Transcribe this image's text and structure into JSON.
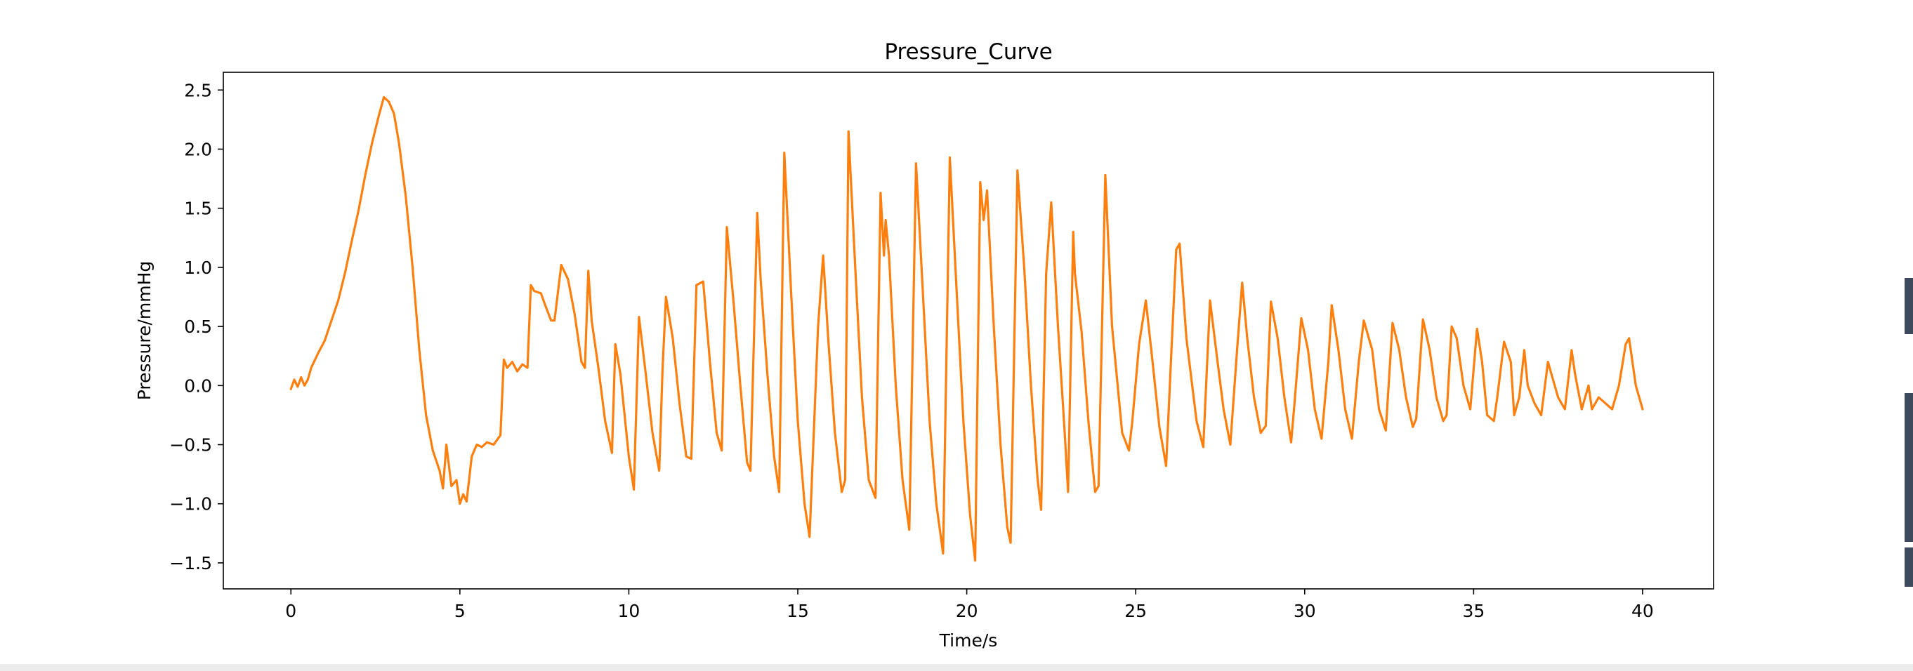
{
  "chart_data": {
    "type": "line",
    "title": "Pressure_Curve",
    "xlabel": "Time/s",
    "ylabel": "Pressure/mmHg",
    "xlim": [
      -2.0,
      42.1
    ],
    "ylim": [
      -1.72,
      2.65
    ],
    "xticks": [
      0,
      5,
      10,
      15,
      20,
      25,
      30,
      35,
      40
    ],
    "yticks": [
      -1.5,
      -1.0,
      -0.5,
      0.0,
      0.5,
      1.0,
      1.5,
      2.0,
      2.5
    ],
    "ytick_labels": [
      "−1.5",
      "−1.0",
      "−0.5",
      "0.0",
      "0.5",
      "1.0",
      "1.5",
      "2.0",
      "2.5"
    ],
    "grid": false,
    "series_color": "#ff7f0e",
    "series": [
      {
        "values_xy": [
          [
            0.0,
            -0.03
          ],
          [
            0.1,
            0.05
          ],
          [
            0.2,
            -0.01
          ],
          [
            0.3,
            0.07
          ],
          [
            0.4,
            0.0
          ],
          [
            0.5,
            0.05
          ],
          [
            0.6,
            0.15
          ],
          [
            0.8,
            0.27
          ],
          [
            1.0,
            0.38
          ],
          [
            1.2,
            0.55
          ],
          [
            1.4,
            0.72
          ],
          [
            1.6,
            0.95
          ],
          [
            1.8,
            1.22
          ],
          [
            2.0,
            1.48
          ],
          [
            2.2,
            1.78
          ],
          [
            2.4,
            2.05
          ],
          [
            2.6,
            2.28
          ],
          [
            2.75,
            2.44
          ],
          [
            2.9,
            2.4
          ],
          [
            3.05,
            2.3
          ],
          [
            3.2,
            2.05
          ],
          [
            3.4,
            1.6
          ],
          [
            3.6,
            1.0
          ],
          [
            3.8,
            0.3
          ],
          [
            4.0,
            -0.25
          ],
          [
            4.2,
            -0.55
          ],
          [
            4.4,
            -0.72
          ],
          [
            4.5,
            -0.87
          ],
          [
            4.6,
            -0.5
          ],
          [
            4.75,
            -0.85
          ],
          [
            4.9,
            -0.8
          ],
          [
            5.0,
            -1.0
          ],
          [
            5.1,
            -0.92
          ],
          [
            5.2,
            -0.98
          ],
          [
            5.35,
            -0.6
          ],
          [
            5.5,
            -0.5
          ],
          [
            5.65,
            -0.52
          ],
          [
            5.8,
            -0.48
          ],
          [
            6.0,
            -0.5
          ],
          [
            6.2,
            -0.42
          ],
          [
            6.3,
            0.22
          ],
          [
            6.4,
            0.15
          ],
          [
            6.55,
            0.2
          ],
          [
            6.7,
            0.12
          ],
          [
            6.85,
            0.18
          ],
          [
            7.0,
            0.15
          ],
          [
            7.1,
            0.85
          ],
          [
            7.2,
            0.8
          ],
          [
            7.4,
            0.78
          ],
          [
            7.5,
            0.7
          ],
          [
            7.7,
            0.55
          ],
          [
            7.8,
            0.55
          ],
          [
            8.0,
            1.02
          ],
          [
            8.2,
            0.9
          ],
          [
            8.4,
            0.6
          ],
          [
            8.6,
            0.2
          ],
          [
            8.7,
            0.15
          ],
          [
            8.8,
            0.97
          ],
          [
            8.9,
            0.55
          ],
          [
            9.1,
            0.15
          ],
          [
            9.3,
            -0.3
          ],
          [
            9.5,
            -0.57
          ],
          [
            9.6,
            0.35
          ],
          [
            9.75,
            0.1
          ],
          [
            10.0,
            -0.6
          ],
          [
            10.15,
            -0.88
          ],
          [
            10.3,
            0.58
          ],
          [
            10.5,
            0.1
          ],
          [
            10.7,
            -0.4
          ],
          [
            10.9,
            -0.72
          ],
          [
            11.0,
            0.15
          ],
          [
            11.1,
            0.75
          ],
          [
            11.3,
            0.4
          ],
          [
            11.5,
            -0.15
          ],
          [
            11.7,
            -0.6
          ],
          [
            11.85,
            -0.62
          ],
          [
            12.0,
            0.85
          ],
          [
            12.2,
            0.88
          ],
          [
            12.4,
            0.2
          ],
          [
            12.6,
            -0.4
          ],
          [
            12.75,
            -0.55
          ],
          [
            12.9,
            1.34
          ],
          [
            13.1,
            0.7
          ],
          [
            13.3,
            0.0
          ],
          [
            13.5,
            -0.65
          ],
          [
            13.6,
            -0.72
          ],
          [
            13.8,
            1.46
          ],
          [
            13.9,
            0.9
          ],
          [
            14.1,
            0.1
          ],
          [
            14.3,
            -0.6
          ],
          [
            14.45,
            -0.9
          ],
          [
            14.6,
            1.97
          ],
          [
            14.8,
            0.8
          ],
          [
            15.0,
            -0.3
          ],
          [
            15.2,
            -1.0
          ],
          [
            15.35,
            -1.28
          ],
          [
            15.6,
            0.5
          ],
          [
            15.75,
            1.1
          ],
          [
            15.9,
            0.4
          ],
          [
            16.1,
            -0.4
          ],
          [
            16.3,
            -0.9
          ],
          [
            16.4,
            -0.8
          ],
          [
            16.5,
            2.15
          ],
          [
            16.7,
            1.0
          ],
          [
            16.9,
            -0.1
          ],
          [
            17.1,
            -0.8
          ],
          [
            17.3,
            -0.95
          ],
          [
            17.45,
            1.63
          ],
          [
            17.55,
            1.1
          ],
          [
            17.6,
            1.4
          ],
          [
            17.7,
            1.1
          ],
          [
            17.9,
            0.0
          ],
          [
            18.1,
            -0.8
          ],
          [
            18.3,
            -1.22
          ],
          [
            18.5,
            1.88
          ],
          [
            18.7,
            0.8
          ],
          [
            18.9,
            -0.3
          ],
          [
            19.1,
            -1.0
          ],
          [
            19.3,
            -1.42
          ],
          [
            19.5,
            1.93
          ],
          [
            19.7,
            0.8
          ],
          [
            19.9,
            -0.3
          ],
          [
            20.1,
            -1.1
          ],
          [
            20.25,
            -1.48
          ],
          [
            20.4,
            1.72
          ],
          [
            20.5,
            1.4
          ],
          [
            20.6,
            1.65
          ],
          [
            20.8,
            0.5
          ],
          [
            21.0,
            -0.5
          ],
          [
            21.2,
            -1.2
          ],
          [
            21.3,
            -1.33
          ],
          [
            21.5,
            1.82
          ],
          [
            21.7,
            1.0
          ],
          [
            21.9,
            0.0
          ],
          [
            22.1,
            -0.8
          ],
          [
            22.2,
            -1.05
          ],
          [
            22.35,
            0.95
          ],
          [
            22.5,
            1.55
          ],
          [
            22.7,
            0.5
          ],
          [
            22.9,
            -0.4
          ],
          [
            23.0,
            -0.9
          ],
          [
            23.15,
            1.3
          ],
          [
            23.2,
            0.95
          ],
          [
            23.4,
            0.45
          ],
          [
            23.6,
            -0.3
          ],
          [
            23.8,
            -0.9
          ],
          [
            23.9,
            -0.85
          ],
          [
            24.1,
            1.78
          ],
          [
            24.3,
            0.5
          ],
          [
            24.6,
            -0.4
          ],
          [
            24.8,
            -0.55
          ],
          [
            24.9,
            -0.3
          ],
          [
            25.1,
            0.35
          ],
          [
            25.3,
            0.72
          ],
          [
            25.5,
            0.2
          ],
          [
            25.7,
            -0.35
          ],
          [
            25.9,
            -0.68
          ],
          [
            26.05,
            0.25
          ],
          [
            26.2,
            1.15
          ],
          [
            26.3,
            1.2
          ],
          [
            26.5,
            0.4
          ],
          [
            26.8,
            -0.3
          ],
          [
            27.0,
            -0.52
          ],
          [
            27.2,
            0.72
          ],
          [
            27.4,
            0.25
          ],
          [
            27.6,
            -0.2
          ],
          [
            27.8,
            -0.5
          ],
          [
            28.0,
            0.3
          ],
          [
            28.15,
            0.87
          ],
          [
            28.3,
            0.4
          ],
          [
            28.5,
            -0.1
          ],
          [
            28.7,
            -0.4
          ],
          [
            28.85,
            -0.34
          ],
          [
            29.0,
            0.71
          ],
          [
            29.2,
            0.4
          ],
          [
            29.4,
            -0.1
          ],
          [
            29.6,
            -0.48
          ],
          [
            29.7,
            -0.15
          ],
          [
            29.9,
            0.57
          ],
          [
            30.1,
            0.3
          ],
          [
            30.3,
            -0.2
          ],
          [
            30.5,
            -0.45
          ],
          [
            30.7,
            0.2
          ],
          [
            30.8,
            0.68
          ],
          [
            31.0,
            0.3
          ],
          [
            31.2,
            -0.2
          ],
          [
            31.4,
            -0.45
          ],
          [
            31.6,
            0.2
          ],
          [
            31.75,
            0.55
          ],
          [
            32.0,
            0.3
          ],
          [
            32.2,
            -0.2
          ],
          [
            32.4,
            -0.38
          ],
          [
            32.6,
            0.53
          ],
          [
            32.8,
            0.3
          ],
          [
            33.0,
            -0.1
          ],
          [
            33.2,
            -0.35
          ],
          [
            33.3,
            -0.28
          ],
          [
            33.5,
            0.56
          ],
          [
            33.7,
            0.3
          ],
          [
            33.9,
            -0.1
          ],
          [
            34.1,
            -0.3
          ],
          [
            34.2,
            -0.25
          ],
          [
            34.35,
            0.5
          ],
          [
            34.5,
            0.4
          ],
          [
            34.7,
            0.0
          ],
          [
            34.9,
            -0.2
          ],
          [
            35.1,
            0.48
          ],
          [
            35.25,
            0.2
          ],
          [
            35.4,
            -0.25
          ],
          [
            35.6,
            -0.3
          ],
          [
            35.7,
            -0.1
          ],
          [
            35.9,
            0.37
          ],
          [
            36.1,
            0.2
          ],
          [
            36.2,
            -0.25
          ],
          [
            36.35,
            -0.1
          ],
          [
            36.5,
            0.3
          ],
          [
            36.6,
            0.0
          ],
          [
            36.8,
            -0.15
          ],
          [
            37.0,
            -0.25
          ],
          [
            37.2,
            0.2
          ],
          [
            37.3,
            0.1
          ],
          [
            37.5,
            -0.1
          ],
          [
            37.7,
            -0.2
          ],
          [
            37.9,
            0.3
          ],
          [
            38.0,
            0.1
          ],
          [
            38.2,
            -0.2
          ],
          [
            38.4,
            0.0
          ],
          [
            38.5,
            -0.2
          ],
          [
            38.7,
            -0.1
          ],
          [
            38.9,
            -0.15
          ],
          [
            39.1,
            -0.2
          ],
          [
            39.3,
            0.0
          ],
          [
            39.5,
            0.35
          ],
          [
            39.6,
            0.4
          ],
          [
            39.8,
            0.0
          ],
          [
            40.0,
            -0.2
          ]
        ]
      }
    ]
  }
}
